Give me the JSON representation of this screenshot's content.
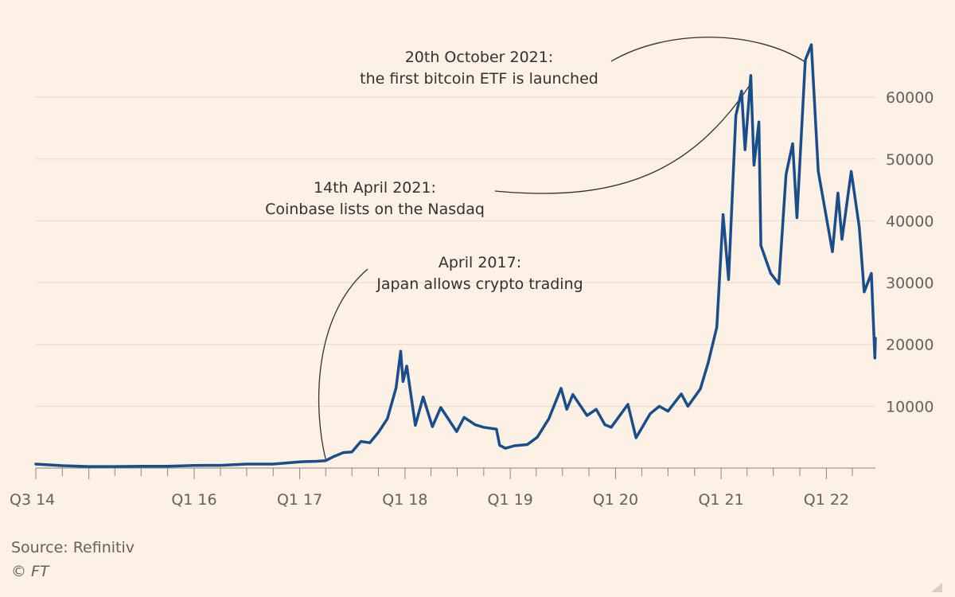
{
  "chart_data": {
    "type": "line",
    "title": "",
    "xlabel": "",
    "ylabel": "",
    "y_range": [
      0,
      68000
    ],
    "x_range": [
      "2014-07-01",
      "2022-06-20"
    ],
    "y_ticks": [
      10000,
      20000,
      30000,
      40000,
      50000,
      60000
    ],
    "y_tick_labels": [
      "10000",
      "20000",
      "30000",
      "40000",
      "50000",
      "60000"
    ],
    "x_ticks": [
      "2014-07-01",
      "2016-01-01",
      "2017-01-01",
      "2018-01-01",
      "2019-01-01",
      "2020-01-01",
      "2021-01-01",
      "2022-01-01"
    ],
    "x_tick_labels": [
      "Q3 14",
      "Q1 16",
      "Q1 17",
      "Q1 18",
      "Q1 19",
      "Q1 20",
      "Q1 21",
      "Q1 22"
    ],
    "grid": true,
    "line_color": "#1a4e8a",
    "series": [
      {
        "name": "",
        "points": [
          [
            "2014-07-01",
            640
          ],
          [
            "2014-10-01",
            380
          ],
          [
            "2015-01-01",
            250
          ],
          [
            "2015-04-01",
            240
          ],
          [
            "2015-07-01",
            280
          ],
          [
            "2015-10-01",
            300
          ],
          [
            "2016-01-01",
            430
          ],
          [
            "2016-04-01",
            440
          ],
          [
            "2016-07-01",
            650
          ],
          [
            "2016-10-01",
            640
          ],
          [
            "2017-01-01",
            1000
          ],
          [
            "2017-03-01",
            1100
          ],
          [
            "2017-04-01",
            1200
          ],
          [
            "2017-05-01",
            1900
          ],
          [
            "2017-06-01",
            2500
          ],
          [
            "2017-07-01",
            2600
          ],
          [
            "2017-08-01",
            4300
          ],
          [
            "2017-09-01",
            4100
          ],
          [
            "2017-10-01",
            5800
          ],
          [
            "2017-11-01",
            8000
          ],
          [
            "2017-12-01",
            13000
          ],
          [
            "2017-12-17",
            18900
          ],
          [
            "2017-12-25",
            14000
          ],
          [
            "2018-01-07",
            16500
          ],
          [
            "2018-02-06",
            6900
          ],
          [
            "2018-03-05",
            11500
          ],
          [
            "2018-04-06",
            6700
          ],
          [
            "2018-05-05",
            9800
          ],
          [
            "2018-06-29",
            5900
          ],
          [
            "2018-07-25",
            8200
          ],
          [
            "2018-09-01",
            7000
          ],
          [
            "2018-10-01",
            6600
          ],
          [
            "2018-11-14",
            6300
          ],
          [
            "2018-11-25",
            3700
          ],
          [
            "2018-12-15",
            3200
          ],
          [
            "2019-01-15",
            3600
          ],
          [
            "2019-03-01",
            3800
          ],
          [
            "2019-04-05",
            5000
          ],
          [
            "2019-05-15",
            8000
          ],
          [
            "2019-06-26",
            12900
          ],
          [
            "2019-07-16",
            9500
          ],
          [
            "2019-08-06",
            11900
          ],
          [
            "2019-09-24",
            8500
          ],
          [
            "2019-10-26",
            9500
          ],
          [
            "2019-11-25",
            7000
          ],
          [
            "2019-12-17",
            6600
          ],
          [
            "2020-02-13",
            10300
          ],
          [
            "2020-03-12",
            4900
          ],
          [
            "2020-04-30",
            8800
          ],
          [
            "2020-06-01",
            10000
          ],
          [
            "2020-07-01",
            9200
          ],
          [
            "2020-08-16",
            12000
          ],
          [
            "2020-09-08",
            10000
          ],
          [
            "2020-10-21",
            12800
          ],
          [
            "2020-11-17",
            17000
          ],
          [
            "2020-12-17",
            22800
          ],
          [
            "2021-01-08",
            41000
          ],
          [
            "2021-01-27",
            30500
          ],
          [
            "2021-02-21",
            57000
          ],
          [
            "2021-03-13",
            61000
          ],
          [
            "2021-03-25",
            51500
          ],
          [
            "2021-04-14",
            63500
          ],
          [
            "2021-04-25",
            49000
          ],
          [
            "2021-05-12",
            56000
          ],
          [
            "2021-05-19",
            36000
          ],
          [
            "2021-06-22",
            31500
          ],
          [
            "2021-07-20",
            29800
          ],
          [
            "2021-08-14",
            47500
          ],
          [
            "2021-09-06",
            52500
          ],
          [
            "2021-09-21",
            40500
          ],
          [
            "2021-10-20",
            66000
          ],
          [
            "2021-11-10",
            68500
          ],
          [
            "2021-12-04",
            48000
          ],
          [
            "2022-01-22",
            35000
          ],
          [
            "2022-02-10",
            44500
          ],
          [
            "2022-02-24",
            37000
          ],
          [
            "2022-03-28",
            48000
          ],
          [
            "2022-04-25",
            39000
          ],
          [
            "2022-05-12",
            28500
          ],
          [
            "2022-06-06",
            31500
          ],
          [
            "2022-06-18",
            17800
          ],
          [
            "2022-06-20",
            21000
          ]
        ]
      }
    ],
    "annotations": [
      {
        "lines": [
          "20th October 2021:",
          "the first bitcoin ETF is launched"
        ],
        "date": "2021-10-20"
      },
      {
        "lines": [
          "14th April 2021:",
          "Coinbase lists on the Nasdaq"
        ],
        "date": "2021-04-14"
      },
      {
        "lines": [
          "April 2017:",
          "Japan allows crypto trading"
        ],
        "date": "2017-04-01"
      }
    ]
  },
  "footer": {
    "source": "Source: Refinitiv",
    "copyright": "© FT"
  },
  "icons": {
    "corner": "resize-corner-icon"
  }
}
